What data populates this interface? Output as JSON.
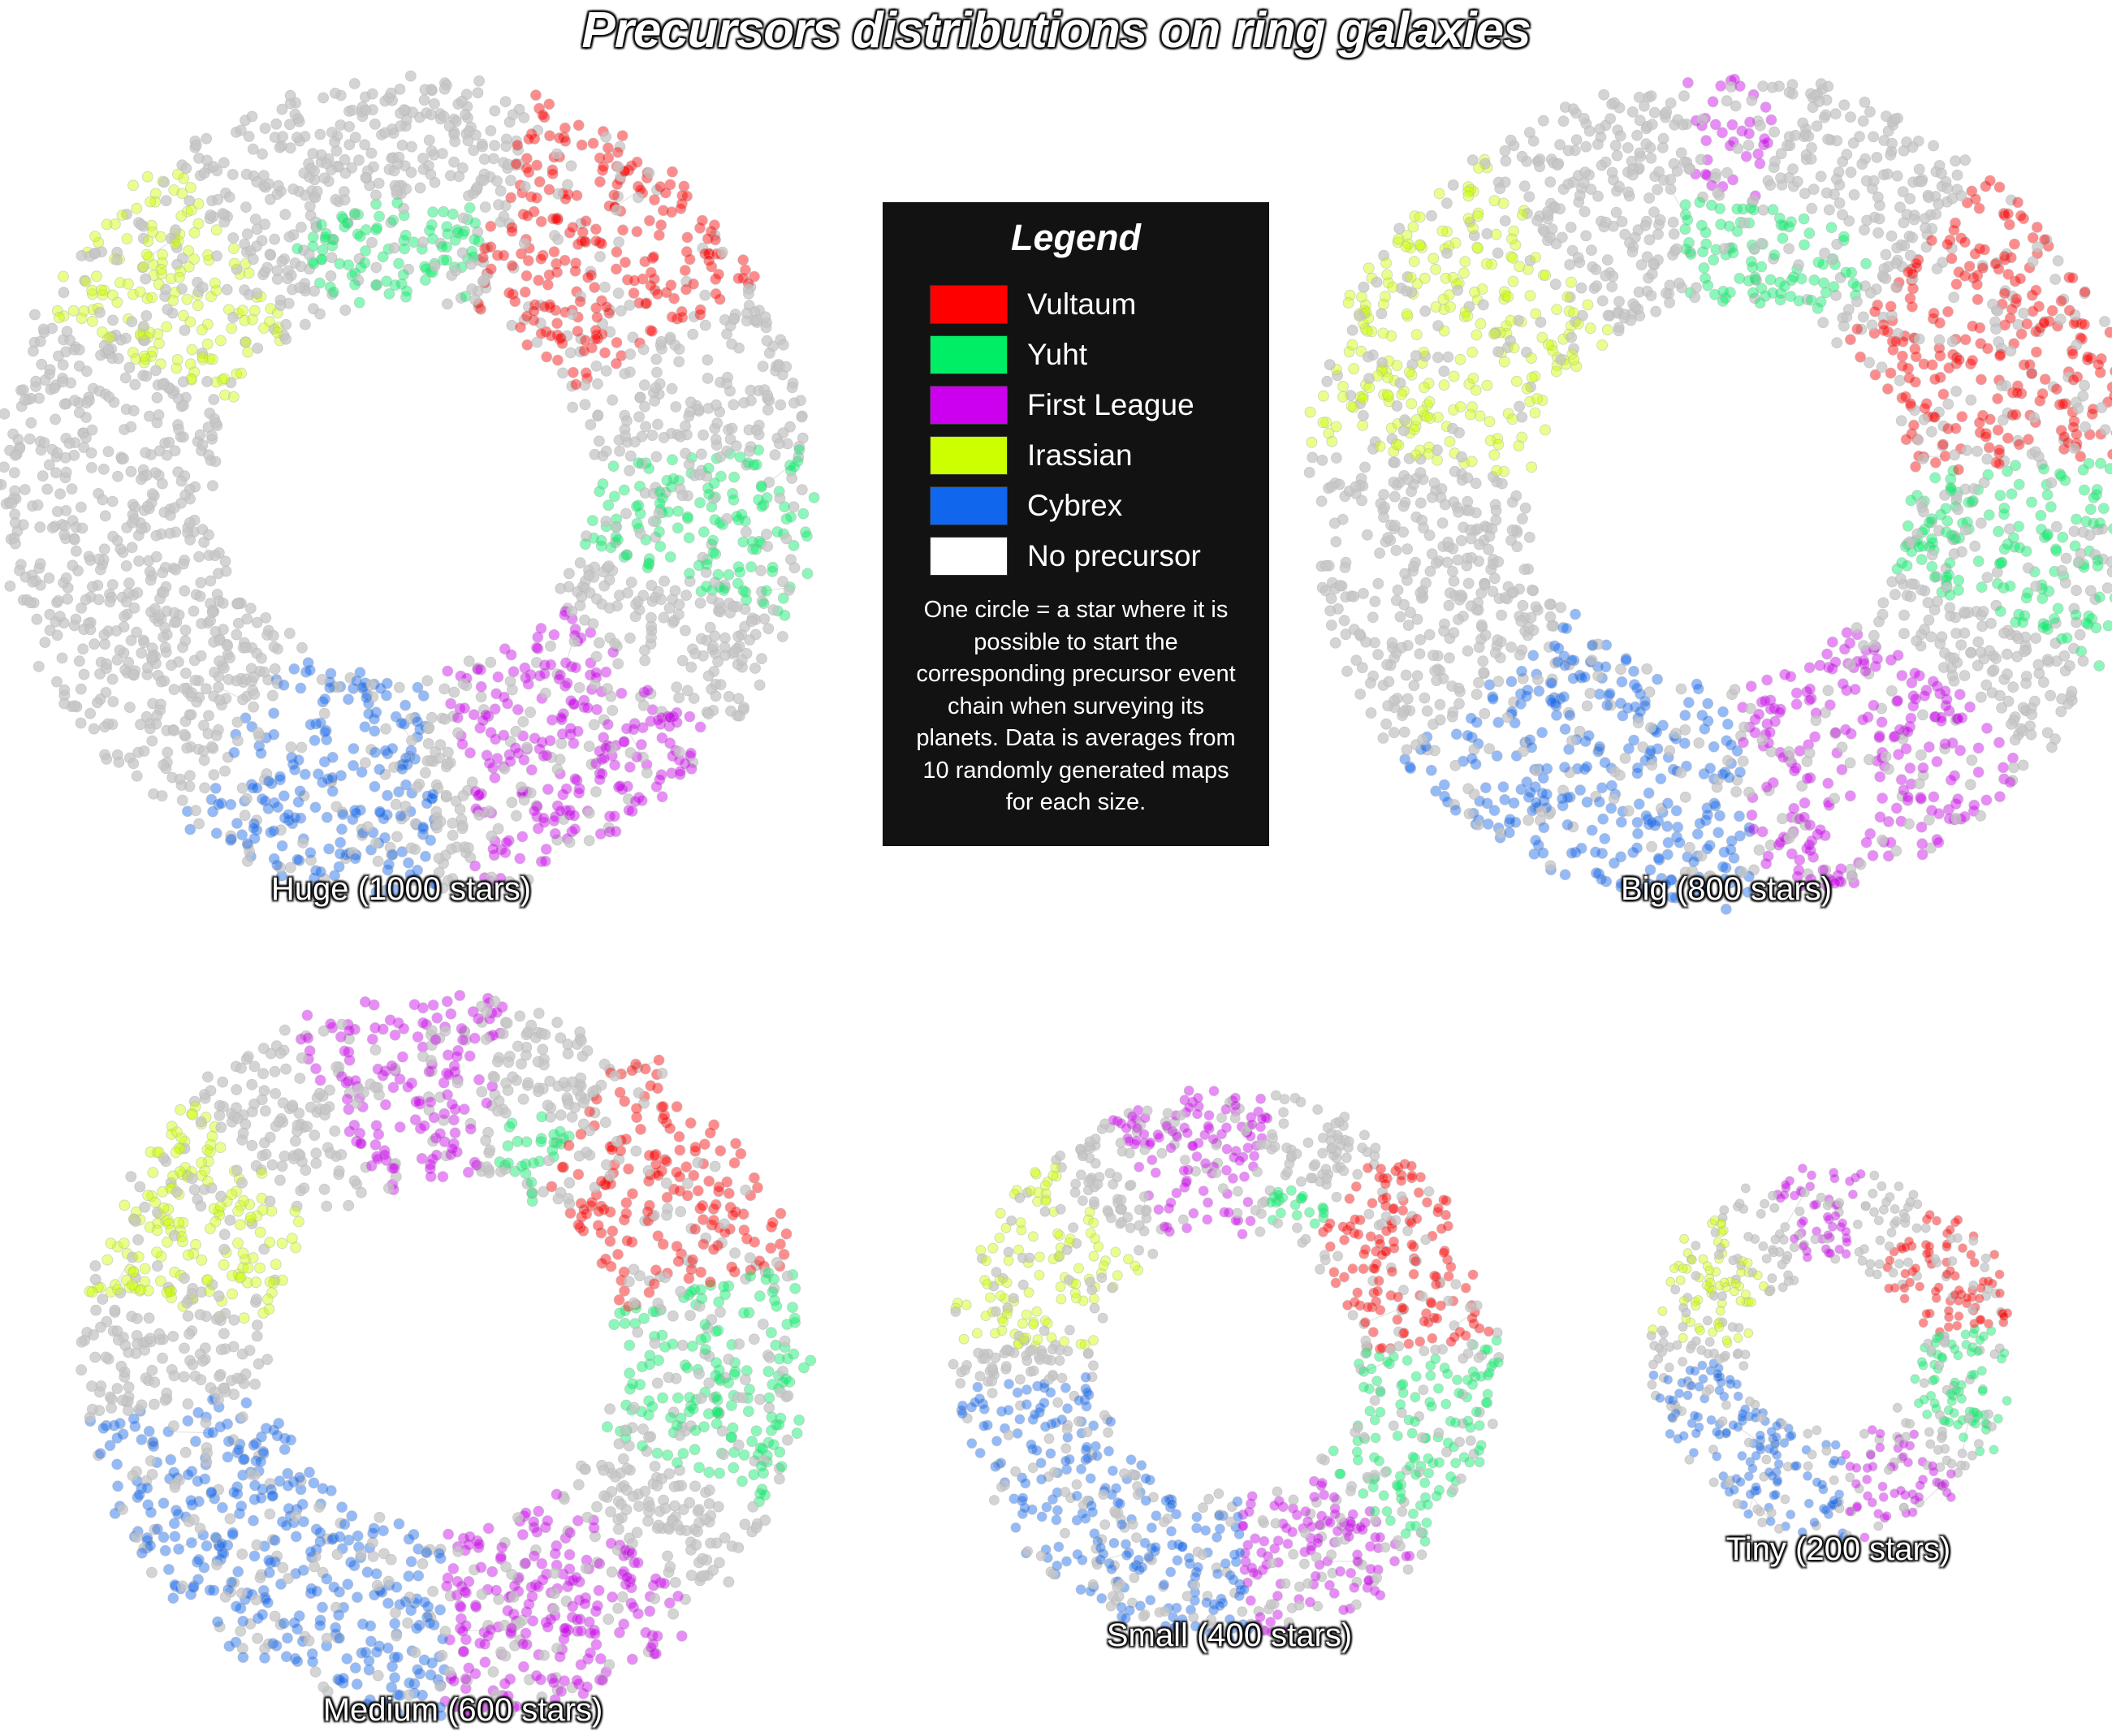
{
  "title": "Precursors distributions on ring galaxies",
  "legend": {
    "title": "Legend",
    "items": [
      {
        "label": "Vultaum",
        "color": "#ff0000"
      },
      {
        "label": "Yuht",
        "color": "#00ee66"
      },
      {
        "label": "First League",
        "color": "#cc00ee"
      },
      {
        "label": "Irassian",
        "color": "#ccff00"
      },
      {
        "label": "Cybrex",
        "color": "#1166ee"
      },
      {
        "label": "No precursor",
        "color": "#ffffff"
      }
    ],
    "note": "One circle = a star where it is possible to start the corresponding precursor event chain when surveying its planets. Data is averages from 10 randomly generated maps for each size."
  },
  "galaxies": [
    {
      "label": "Huge (1000 stars)"
    },
    {
      "label": "Big (800 stars)"
    },
    {
      "label": "Medium (600 stars)"
    },
    {
      "label": "Small (400 stars)"
    },
    {
      "label": "Tiny (200 stars)"
    }
  ],
  "colors": {
    "no_precursor_dot": "#c6c6c6",
    "vultaum": "#ff0000",
    "yuht": "#00ee66",
    "first_league": "#cc00ee",
    "irassian": "#ccff00",
    "cybrex": "#1166ee"
  }
}
